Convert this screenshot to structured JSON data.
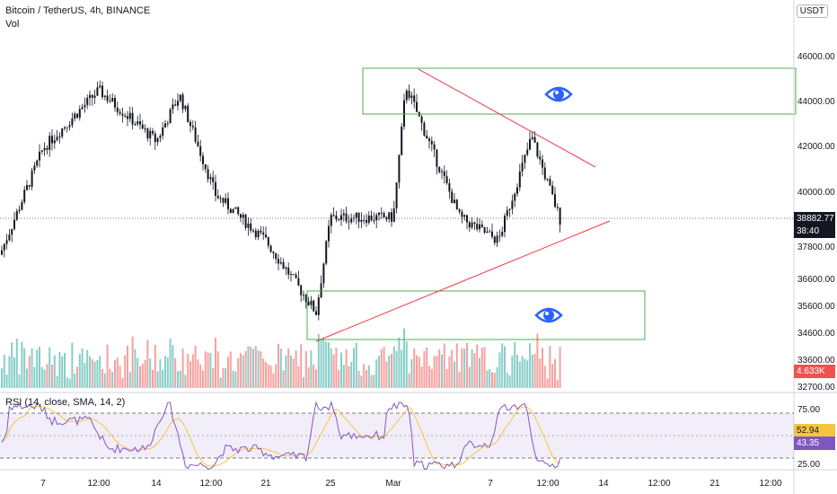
{
  "header": {
    "title": "Bitcoin / TetherUS, 4h, BINANCE",
    "volume_label": "Vol",
    "currency_badge": "USDT",
    "rsi_label": "RSI (14, close, SMA, 14, 2)"
  },
  "colors": {
    "up": "#26a69a",
    "down": "#ef5350",
    "box": "#4caf50",
    "trendline": "#f23645",
    "rsi_line": "#7e57c2",
    "rsi_sma": "#f5c542",
    "eye": "#2962ff"
  },
  "price_tags": {
    "current_price": "38882.77",
    "countdown": "38:40",
    "volume": "4.633K",
    "rsi_sma": "52.94",
    "rsi": "43.35"
  },
  "chart_data": [
    {
      "type": "candlestick",
      "title": "Bitcoin / TetherUS, 4h, BINANCE",
      "y_axis_ticks": [
        "46000.00",
        "44000.00",
        "42000.00",
        "40000.00",
        "37800.00",
        "36600.00",
        "35600.00",
        "34600.00",
        "33600.00",
        "32700.00"
      ],
      "x_axis_ticks": [
        "7",
        "12:00",
        "14",
        "12:00",
        "21",
        "25",
        "Mar",
        "7",
        "12:00",
        "14",
        "12:00",
        "21",
        "12:00"
      ],
      "current_price": 38882.77,
      "close_path": [
        {
          "t": "start",
          "price": 37400
        },
        {
          "t": "7",
          "price": 42000
        },
        {
          "t": "12:00",
          "price": 44500
        },
        {
          "t": "14",
          "price": 42300
        },
        {
          "t": "12:00",
          "price": 44300
        },
        {
          "t": "between 12:00 and 21",
          "price": 40000
        },
        {
          "t": "21",
          "price": 38000
        },
        {
          "t": "before 25",
          "price": 34900
        },
        {
          "t": "25",
          "price": 39000
        },
        {
          "t": "Mar",
          "price": 39000
        },
        {
          "t": "after Mar",
          "price": 44700
        },
        {
          "t": "before 7",
          "price": 39000
        },
        {
          "t": "7",
          "price": 38000
        },
        {
          "t": "before 12:00",
          "price": 42500
        },
        {
          "t": "12:00",
          "price": 38882.77
        }
      ],
      "annotations": [
        {
          "type": "rectangle",
          "name": "resistance zone",
          "price_range": [
            43400,
            45400
          ]
        },
        {
          "type": "rectangle",
          "name": "support zone",
          "price_range": [
            34400,
            36000
          ]
        },
        {
          "type": "trendline",
          "name": "descending resistance",
          "from_price": 45400,
          "to_price": 41000
        },
        {
          "type": "trendline",
          "name": "ascending support",
          "from_price": 34400,
          "to_price": 39200
        }
      ]
    },
    {
      "type": "bar",
      "title": "Vol",
      "last_value": "4.633K"
    },
    {
      "type": "line",
      "title": "RSI (14, close, SMA, 14, 2)",
      "y_axis_ticks": [
        "75.00",
        "25.00"
      ],
      "ylim": [
        20,
        80
      ],
      "levels": [
        70,
        50,
        30
      ],
      "series": [
        {
          "name": "RSI",
          "last_value": 43.35
        },
        {
          "name": "SMA",
          "last_value": 52.94
        }
      ]
    }
  ]
}
